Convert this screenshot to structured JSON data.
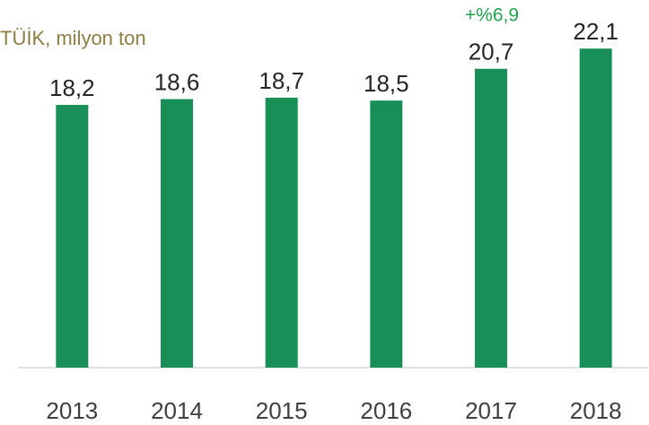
{
  "chart_data": {
    "type": "bar",
    "subtitle": "TÜİK, milyon ton",
    "annotation": "+%6,9",
    "categories": [
      "2013",
      "2014",
      "2015",
      "2016",
      "2017",
      "2018"
    ],
    "values": [
      18.2,
      18.6,
      18.7,
      18.5,
      20.7,
      22.1
    ],
    "value_labels": [
      "18,2",
      "18,6",
      "18,7",
      "18,5",
      "20,7",
      "22,1"
    ],
    "color": "#188f56",
    "ylim": [
      0,
      25
    ]
  }
}
